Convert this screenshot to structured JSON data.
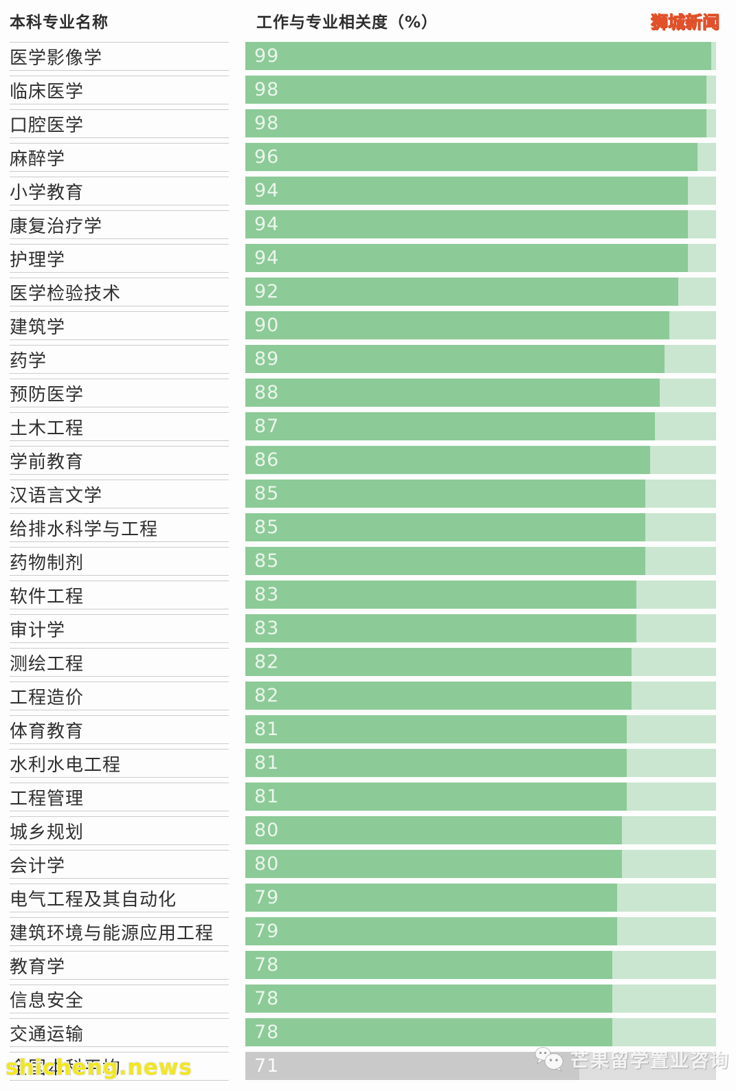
{
  "header": {
    "left_title": "本科专业名称",
    "right_title": "工作与专业相关度（%）",
    "brand": "狮城新闻"
  },
  "chart_data": {
    "type": "bar",
    "orientation": "horizontal",
    "title": "工作与专业相关度（%）",
    "xlim": [
      0,
      100
    ],
    "grid": false,
    "legend": "none",
    "categories": [
      "医学影像学",
      "临床医学",
      "口腔医学",
      "麻醉学",
      "小学教育",
      "康复治疗学",
      "护理学",
      "医学检验技术",
      "建筑学",
      "药学",
      "预防医学",
      "土木工程",
      "学前教育",
      "汉语言文学",
      "给排水科学与工程",
      "药物制剂",
      "软件工程",
      "审计学",
      "测绘工程",
      "工程造价",
      "体育教育",
      "水利水电工程",
      "工程管理",
      "城乡规划",
      "会计学",
      "电气工程及其自动化",
      "建筑环境与能源应用工程",
      "教育学",
      "信息安全",
      "交通运输",
      "全国本科平均"
    ],
    "values": [
      99,
      98,
      98,
      96,
      94,
      94,
      94,
      92,
      90,
      89,
      88,
      87,
      86,
      85,
      85,
      85,
      83,
      83,
      82,
      82,
      81,
      81,
      81,
      80,
      80,
      79,
      79,
      78,
      78,
      78,
      71
    ],
    "average_row_label": "全国本科平均",
    "colors": {
      "bar_fill": "#8cca97",
      "bar_track": "#cae6d0",
      "average_fill": "#c9c9c9",
      "average_track": "#dedede",
      "value_text": "#e9f6ec",
      "label_text": "#2f2f2f",
      "separator": "#cbcbcb"
    }
  },
  "watermarks": {
    "wechat_label": "芒果留学置业咨询",
    "site": "shicheng.news"
  }
}
